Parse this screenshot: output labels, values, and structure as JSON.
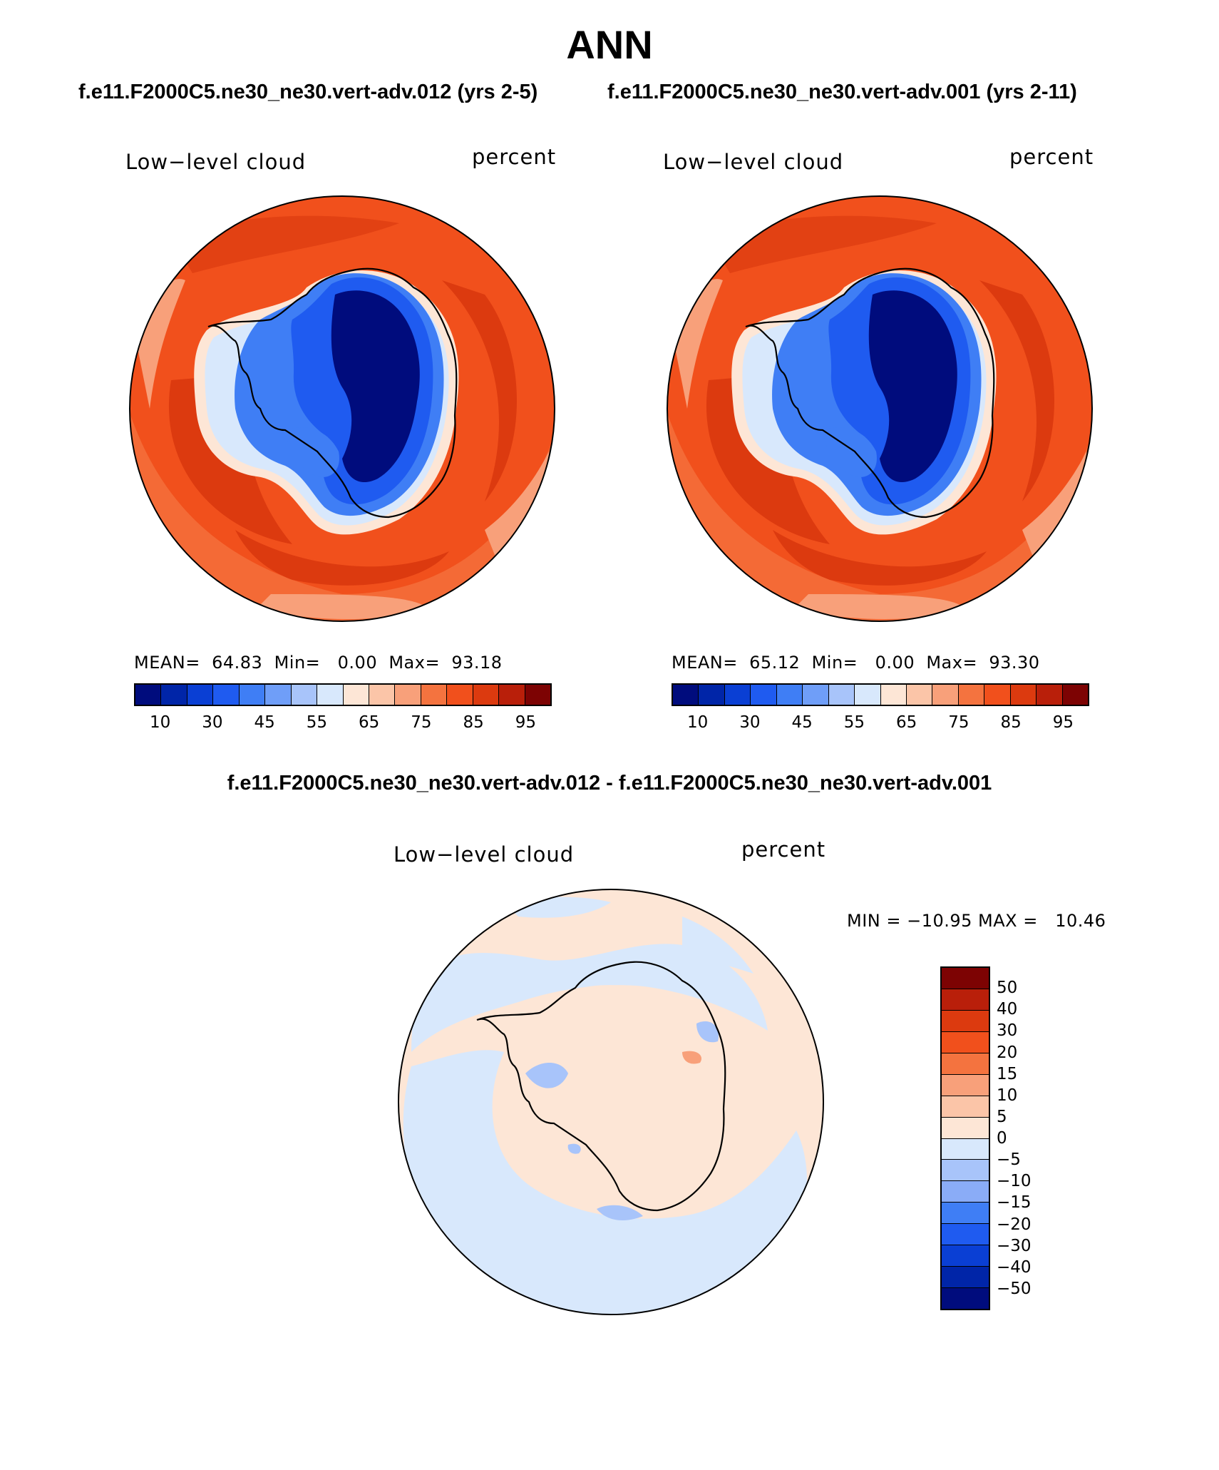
{
  "page_title": "ANN",
  "subtitles": {
    "case_a": "f.e11.F2000C5.ne30_ne30.vert-adv.012 (yrs 2-5)",
    "case_b": "f.e11.F2000C5.ne30_ne30.vert-adv.001 (yrs 2-11)",
    "diff": "f.e11.F2000C5.ne30_ne30.vert-adv.012 - f.e11.F2000C5.ne30_ne30.vert-adv.001"
  },
  "panels": [
    {
      "variable_label": "Low−level cloud",
      "units_label": "percent",
      "stats_text": "MEAN=  64.83  Min=   0.00  Max=  93.18",
      "colorbar_ticks": [
        "10",
        "30",
        "45",
        "55",
        "65",
        "75",
        "85",
        "95"
      ]
    },
    {
      "variable_label": "Low−level cloud",
      "units_label": "percent",
      "stats_text": "MEAN=  65.12  Min=   0.00  Max=  93.30",
      "colorbar_ticks": [
        "10",
        "30",
        "45",
        "55",
        "65",
        "75",
        "85",
        "95"
      ]
    }
  ],
  "diff_panel": {
    "variable_label": "Low−level cloud",
    "units_label": "percent",
    "minmax_text": "MIN = −10.95 MAX =   10.46",
    "colorbar_ticks": [
      "50",
      "40",
      "30",
      "20",
      "15",
      "10",
      "5",
      "0",
      "−5",
      "−10",
      "−15",
      "−20",
      "−30",
      "−40",
      "−50"
    ]
  },
  "colors": {
    "field_palette": [
      "#000c7d",
      "#0025a8",
      "#0a3fd4",
      "#1f5bf0",
      "#3f7ef5",
      "#6f9ef8",
      "#a8c4fa",
      "#d8e8fc",
      "#fde6d6",
      "#fbc5a8",
      "#f8a07a",
      "#f4733f",
      "#f1501c",
      "#dc3a0f",
      "#b91f0a",
      "#7d0303"
    ],
    "diff_palette": [
      "#7d0303",
      "#b91f0a",
      "#dc3a0f",
      "#f1501c",
      "#f4733f",
      "#f8a07a",
      "#fbc5a8",
      "#fde6d6",
      "#d8e8fc",
      "#a8c4fa",
      "#8aacf7",
      "#3f7ef5",
      "#1f5bf0",
      "#0a3fd4",
      "#0025a8",
      "#000c7d"
    ]
  }
}
